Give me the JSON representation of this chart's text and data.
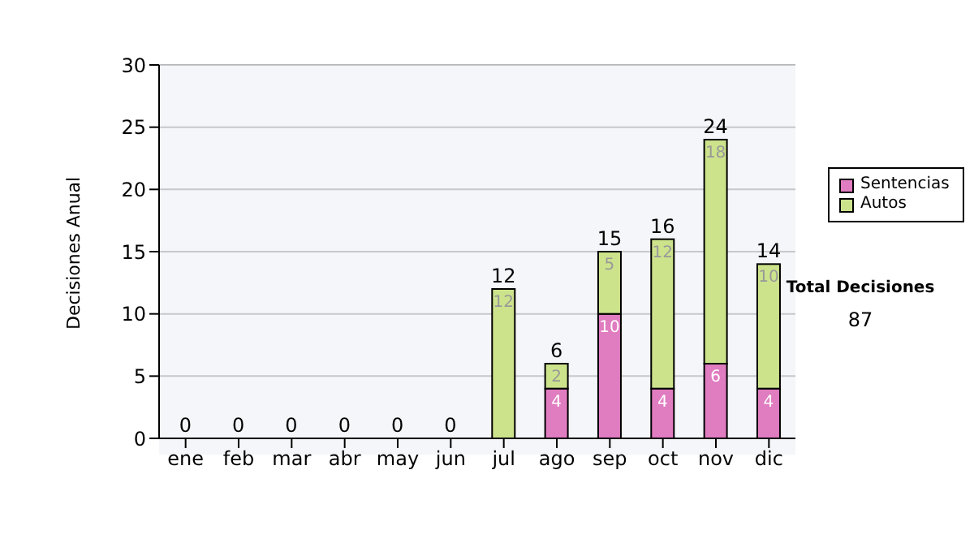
{
  "chart_data": {
    "type": "bar",
    "stacked": true,
    "ylabel": "Decisiones Anual",
    "categories": [
      "ene",
      "feb",
      "mar",
      "abr",
      "may",
      "jun",
      "jul",
      "ago",
      "sep",
      "oct",
      "nov",
      "dic"
    ],
    "series": [
      {
        "name": "Sentencias",
        "color": "#e07cc0",
        "values": [
          0,
          0,
          0,
          0,
          0,
          0,
          0,
          4,
          10,
          4,
          6,
          4
        ],
        "value_labels": [
          null,
          null,
          null,
          null,
          null,
          null,
          null,
          "4",
          "10",
          "4",
          "6",
          "4"
        ]
      },
      {
        "name": "Autos",
        "color": "#cce38c",
        "values": [
          0,
          0,
          0,
          0,
          0,
          0,
          12,
          2,
          5,
          12,
          18,
          10
        ],
        "value_labels": [
          null,
          null,
          null,
          null,
          null,
          null,
          "12",
          "2",
          "5",
          "12",
          "18",
          "10"
        ]
      }
    ],
    "totals": [
      "0",
      "0",
      "0",
      "0",
      "0",
      "0",
      "12",
      "6",
      "15",
      "16",
      "24",
      "14"
    ],
    "ylim": [
      0,
      30
    ],
    "yticks": [
      0,
      5,
      10,
      15,
      20,
      25,
      30
    ],
    "grid": "y",
    "legend": "right",
    "annotations": [
      "Total Decisiones",
      "87"
    ]
  }
}
